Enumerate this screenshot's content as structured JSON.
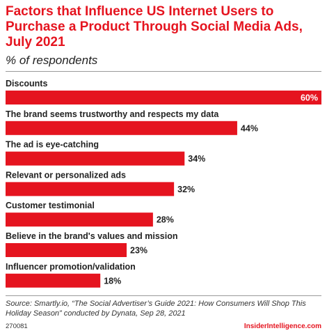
{
  "header": {
    "title": "Factors that Influence US Internet Users to Purchase a Product Through Social Media Ads, July 2021",
    "subtitle": "% of respondents"
  },
  "chart_data": {
    "type": "bar",
    "orientation": "horizontal",
    "categories": [
      "Discounts",
      "The brand seems trustworthy and respects my data",
      "The ad is eye-catching",
      "Relevant or personalized ads",
      "Customer testimonial",
      "Believe in the brand's values and mission",
      "Influencer promotion/validation"
    ],
    "values": [
      60,
      44,
      34,
      32,
      28,
      23,
      18
    ],
    "value_labels": [
      "60%",
      "44%",
      "34%",
      "32%",
      "28%",
      "23%",
      "18%"
    ],
    "unit": "%",
    "xlim": [
      0,
      60
    ],
    "grid": false,
    "legend": "none",
    "bar_color": "#e5141f"
  },
  "footer": {
    "source": "Source: Smartly.io, “The Social Advertiser’s Guide 2021: How Consumers Will Shop This Holiday Season” conducted by Dynata, Sep 28, 2021",
    "chart_id": "270081",
    "brand": "InsiderIntelligence.com"
  },
  "colors": {
    "accent": "#e5141f",
    "text": "#222222"
  }
}
